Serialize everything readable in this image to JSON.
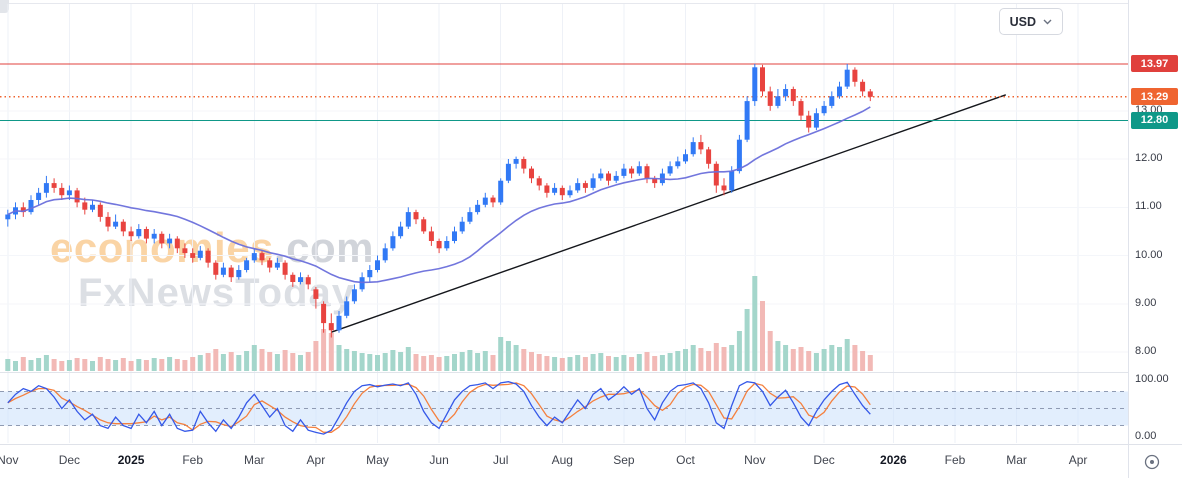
{
  "toolbar": {
    "currency_label": "USD"
  },
  "watermark": {
    "brand": "economies",
    "brand_suffix": ".com",
    "subbrand": "FxNewsToday"
  },
  "chart_data": {
    "type": "candlestick",
    "legend_hidden": true,
    "x_axis_labels": [
      {
        "text": "Nov",
        "index": 0
      },
      {
        "text": "Dec",
        "index": 8
      },
      {
        "text": "2025",
        "index": 16
      },
      {
        "text": "Feb",
        "index": 24
      },
      {
        "text": "Mar",
        "index": 32
      },
      {
        "text": "Apr",
        "index": 40
      },
      {
        "text": "May",
        "index": 48
      },
      {
        "text": "Jun",
        "index": 56
      },
      {
        "text": "Jul",
        "index": 64
      },
      {
        "text": "Aug",
        "index": 72
      },
      {
        "text": "Sep",
        "index": 80
      },
      {
        "text": "Oct",
        "index": 88
      },
      {
        "text": "Nov",
        "index": 97
      },
      {
        "text": "Dec",
        "index": 106
      },
      {
        "text": "2026",
        "index": 115
      },
      {
        "text": "Feb",
        "index": 123
      },
      {
        "text": "Mar",
        "index": 131
      },
      {
        "text": "Apr",
        "index": 139
      }
    ],
    "y_ticks": [
      {
        "text": "13.00",
        "value": 13
      },
      {
        "text": "12.00",
        "value": 12
      },
      {
        "text": "11.00",
        "value": 11
      },
      {
        "text": "10.00",
        "value": 10
      },
      {
        "text": "9.00",
        "value": 9
      },
      {
        "text": "8.00",
        "value": 8
      }
    ],
    "ylim": [
      7.9,
      14.4
    ],
    "levels": [
      {
        "label": "13.97",
        "value": 13.97,
        "color": "#e0403c",
        "line_style": "solid"
      },
      {
        "label": "13.29",
        "value": 13.29,
        "color": "#ef6430",
        "line_style": "dotted"
      },
      {
        "label": "12.80",
        "value": 12.8,
        "color": "#0f9888",
        "line_style": "solid"
      }
    ],
    "ohlc": [
      [
        10.75,
        10.95,
        10.6,
        10.85
      ],
      [
        10.85,
        11.1,
        10.75,
        11.0
      ],
      [
        11.0,
        11.1,
        10.8,
        10.9
      ],
      [
        10.9,
        11.25,
        10.85,
        11.15
      ],
      [
        11.15,
        11.4,
        11.05,
        11.3
      ],
      [
        11.3,
        11.65,
        11.2,
        11.5
      ],
      [
        11.5,
        11.6,
        11.3,
        11.4
      ],
      [
        11.4,
        11.5,
        11.15,
        11.25
      ],
      [
        11.25,
        11.45,
        11.15,
        11.35
      ],
      [
        11.35,
        11.4,
        11.0,
        11.1
      ],
      [
        11.1,
        11.2,
        10.85,
        10.95
      ],
      [
        10.95,
        11.15,
        10.9,
        11.05
      ],
      [
        11.05,
        11.1,
        10.7,
        10.8
      ],
      [
        10.8,
        10.9,
        10.5,
        10.6
      ],
      [
        10.6,
        10.85,
        10.55,
        10.7
      ],
      [
        10.7,
        10.75,
        10.4,
        10.5
      ],
      [
        10.5,
        10.6,
        10.3,
        10.4
      ],
      [
        10.4,
        10.65,
        10.35,
        10.55
      ],
      [
        10.55,
        10.6,
        10.25,
        10.35
      ],
      [
        10.35,
        10.55,
        10.25,
        10.45
      ],
      [
        10.45,
        10.5,
        10.15,
        10.25
      ],
      [
        10.25,
        10.45,
        10.15,
        10.35
      ],
      [
        10.35,
        10.4,
        10.05,
        10.15
      ],
      [
        10.15,
        10.25,
        9.95,
        10.05
      ],
      [
        10.05,
        10.15,
        9.85,
        9.95
      ],
      [
        9.95,
        10.2,
        9.9,
        10.1
      ],
      [
        10.1,
        10.15,
        9.75,
        9.85
      ],
      [
        9.85,
        9.9,
        9.5,
        9.6
      ],
      [
        9.6,
        9.85,
        9.55,
        9.75
      ],
      [
        9.75,
        9.8,
        9.45,
        9.55
      ],
      [
        9.55,
        9.8,
        9.5,
        9.7
      ],
      [
        9.7,
        9.95,
        9.65,
        9.9
      ],
      [
        9.9,
        10.15,
        9.85,
        10.05
      ],
      [
        10.05,
        10.1,
        9.8,
        9.9
      ],
      [
        9.9,
        9.95,
        9.65,
        9.75
      ],
      [
        9.75,
        9.95,
        9.7,
        9.85
      ],
      [
        9.85,
        9.9,
        9.5,
        9.6
      ],
      [
        9.6,
        9.65,
        9.35,
        9.45
      ],
      [
        9.45,
        9.65,
        9.4,
        9.55
      ],
      [
        9.55,
        9.6,
        9.3,
        9.4
      ],
      [
        9.3,
        9.35,
        8.9,
        9.1
      ],
      [
        9.0,
        9.05,
        8.4,
        8.6
      ],
      [
        8.6,
        8.8,
        8.3,
        8.45
      ],
      [
        8.45,
        8.85,
        8.4,
        8.75
      ],
      [
        8.75,
        9.15,
        8.7,
        9.05
      ],
      [
        9.05,
        9.4,
        9.0,
        9.3
      ],
      [
        9.3,
        9.65,
        9.25,
        9.55
      ],
      [
        9.55,
        9.8,
        9.45,
        9.7
      ],
      [
        9.7,
        10.0,
        9.65,
        9.9
      ],
      [
        9.9,
        10.25,
        9.85,
        10.15
      ],
      [
        10.15,
        10.5,
        10.1,
        10.4
      ],
      [
        10.4,
        10.7,
        10.35,
        10.6
      ],
      [
        10.6,
        11.0,
        10.55,
        10.9
      ],
      [
        10.9,
        10.95,
        10.65,
        10.75
      ],
      [
        10.75,
        10.8,
        10.45,
        10.5
      ],
      [
        10.5,
        10.6,
        10.2,
        10.3
      ],
      [
        10.3,
        10.35,
        10.05,
        10.15
      ],
      [
        10.15,
        10.4,
        10.1,
        10.3
      ],
      [
        10.3,
        10.6,
        10.25,
        10.5
      ],
      [
        10.5,
        10.8,
        10.45,
        10.7
      ],
      [
        10.7,
        11.0,
        10.65,
        10.9
      ],
      [
        10.9,
        11.15,
        10.85,
        11.05
      ],
      [
        11.05,
        11.3,
        11.0,
        11.2
      ],
      [
        11.2,
        11.25,
        11.0,
        11.1
      ],
      [
        11.1,
        11.6,
        11.05,
        11.55
      ],
      [
        11.55,
        12.0,
        11.5,
        11.9
      ],
      [
        11.9,
        12.05,
        11.8,
        12.0
      ],
      [
        12.0,
        12.05,
        11.7,
        11.8
      ],
      [
        11.8,
        11.85,
        11.5,
        11.6
      ],
      [
        11.6,
        11.65,
        11.35,
        11.45
      ],
      [
        11.45,
        11.5,
        11.2,
        11.3
      ],
      [
        11.3,
        11.5,
        11.25,
        11.4
      ],
      [
        11.4,
        11.45,
        11.15,
        11.25
      ],
      [
        11.25,
        11.45,
        11.2,
        11.35
      ],
      [
        11.35,
        11.6,
        11.3,
        11.5
      ],
      [
        11.5,
        11.55,
        11.3,
        11.4
      ],
      [
        11.4,
        11.7,
        11.35,
        11.6
      ],
      [
        11.6,
        11.8,
        11.55,
        11.7
      ],
      [
        11.7,
        11.75,
        11.45,
        11.55
      ],
      [
        11.55,
        11.75,
        11.5,
        11.65
      ],
      [
        11.65,
        11.9,
        11.6,
        11.8
      ],
      [
        11.8,
        11.85,
        11.6,
        11.7
      ],
      [
        11.7,
        11.95,
        11.65,
        11.85
      ],
      [
        11.85,
        11.9,
        11.5,
        11.6
      ],
      [
        11.6,
        11.65,
        11.4,
        11.5
      ],
      [
        11.5,
        11.8,
        11.45,
        11.7
      ],
      [
        11.7,
        11.95,
        11.65,
        11.85
      ],
      [
        11.85,
        12.05,
        11.8,
        11.95
      ],
      [
        11.95,
        12.2,
        11.9,
        12.1
      ],
      [
        12.1,
        12.45,
        12.05,
        12.35
      ],
      [
        12.35,
        12.5,
        12.1,
        12.2
      ],
      [
        12.2,
        12.25,
        11.8,
        11.9
      ],
      [
        11.9,
        11.95,
        11.3,
        11.45
      ],
      [
        11.45,
        11.6,
        11.25,
        11.35
      ],
      [
        11.35,
        11.85,
        11.3,
        11.75
      ],
      [
        11.75,
        12.5,
        11.7,
        12.4
      ],
      [
        12.4,
        13.3,
        12.35,
        13.2
      ],
      [
        13.2,
        13.97,
        13.1,
        13.9
      ],
      [
        13.9,
        13.95,
        13.3,
        13.4
      ],
      [
        13.4,
        13.5,
        13.0,
        13.1
      ],
      [
        13.1,
        13.45,
        13.05,
        13.3
      ],
      [
        13.3,
        13.55,
        13.2,
        13.45
      ],
      [
        13.45,
        13.5,
        13.1,
        13.2
      ],
      [
        13.2,
        13.25,
        12.8,
        12.9
      ],
      [
        12.9,
        13.0,
        12.55,
        12.65
      ],
      [
        12.65,
        13.05,
        12.6,
        12.95
      ],
      [
        12.95,
        13.2,
        12.9,
        13.1
      ],
      [
        13.1,
        13.4,
        13.05,
        13.3
      ],
      [
        13.3,
        13.6,
        13.25,
        13.5
      ],
      [
        13.5,
        13.97,
        13.45,
        13.85
      ],
      [
        13.85,
        13.9,
        13.5,
        13.6
      ],
      [
        13.6,
        13.65,
        13.3,
        13.4
      ],
      [
        13.4,
        13.45,
        13.2,
        13.29
      ]
    ],
    "volume": [
      12,
      10,
      14,
      11,
      13,
      16,
      12,
      10,
      11,
      13,
      12,
      10,
      14,
      12,
      11,
      13,
      10,
      12,
      11,
      13,
      12,
      14,
      12,
      11,
      14,
      16,
      18,
      22,
      17,
      19,
      16,
      20,
      26,
      22,
      19,
      17,
      21,
      18,
      16,
      19,
      30,
      42,
      38,
      26,
      22,
      20,
      18,
      17,
      16,
      18,
      21,
      19,
      24,
      17,
      15,
      16,
      14,
      15,
      17,
      19,
      21,
      18,
      20,
      16,
      34,
      30,
      26,
      22,
      19,
      17,
      15,
      14,
      13,
      14,
      16,
      14,
      17,
      18,
      15,
      14,
      16,
      14,
      17,
      19,
      15,
      16,
      18,
      20,
      22,
      26,
      23,
      20,
      28,
      24,
      26,
      40,
      62,
      95,
      70,
      40,
      30,
      26,
      22,
      24,
      20,
      18,
      22,
      26,
      24,
      32,
      26,
      20,
      16
    ],
    "ma_period": 20,
    "oscillator": {
      "name": "stochastic",
      "range": [
        0,
        100
      ],
      "ticks": [
        {
          "text": "100.00",
          "value": 100
        },
        {
          "text": "0.00",
          "value": 0
        }
      ],
      "bands": {
        "upper": 80,
        "middle": 50,
        "lower": 20
      },
      "d_smoothing": 3,
      "k_values": [
        60,
        75,
        85,
        80,
        90,
        85,
        70,
        50,
        65,
        45,
        30,
        40,
        20,
        15,
        35,
        20,
        15,
        40,
        25,
        45,
        20,
        40,
        15,
        10,
        12,
        45,
        25,
        10,
        30,
        15,
        35,
        60,
        75,
        55,
        35,
        50,
        20,
        10,
        30,
        12,
        8,
        5,
        12,
        35,
        60,
        80,
        90,
        92,
        88,
        91,
        93,
        90,
        95,
        75,
        45,
        25,
        15,
        40,
        65,
        80,
        90,
        92,
        95,
        85,
        95,
        97,
        93,
        80,
        55,
        35,
        20,
        35,
        25,
        45,
        65,
        50,
        75,
        85,
        65,
        75,
        88,
        75,
        85,
        50,
        30,
        60,
        80,
        90,
        92,
        95,
        85,
        60,
        25,
        15,
        55,
        90,
        97,
        95,
        80,
        55,
        70,
        82,
        60,
        35,
        20,
        45,
        65,
        80,
        92,
        96,
        75,
        55,
        40
      ]
    },
    "trendline": {
      "start_index": 42,
      "start_price": 8.41,
      "end_index": 129.6,
      "end_price": 13.33
    },
    "colors": {
      "up": "#3179f5",
      "down": "#e8433f",
      "vol_up": "#a4d6cb",
      "vol_down": "#f2b9b6",
      "ma": "#6a6fdb",
      "stoch_k": "#3558e8",
      "stoch_d": "#f5803e",
      "trend": "#15171c",
      "band_fill": "#cfe3fb",
      "band_line": "#8f9bb3",
      "grid": "#eef1f7",
      "grid_h": "#f4f6fa",
      "axis_text": "#363a45"
    }
  }
}
